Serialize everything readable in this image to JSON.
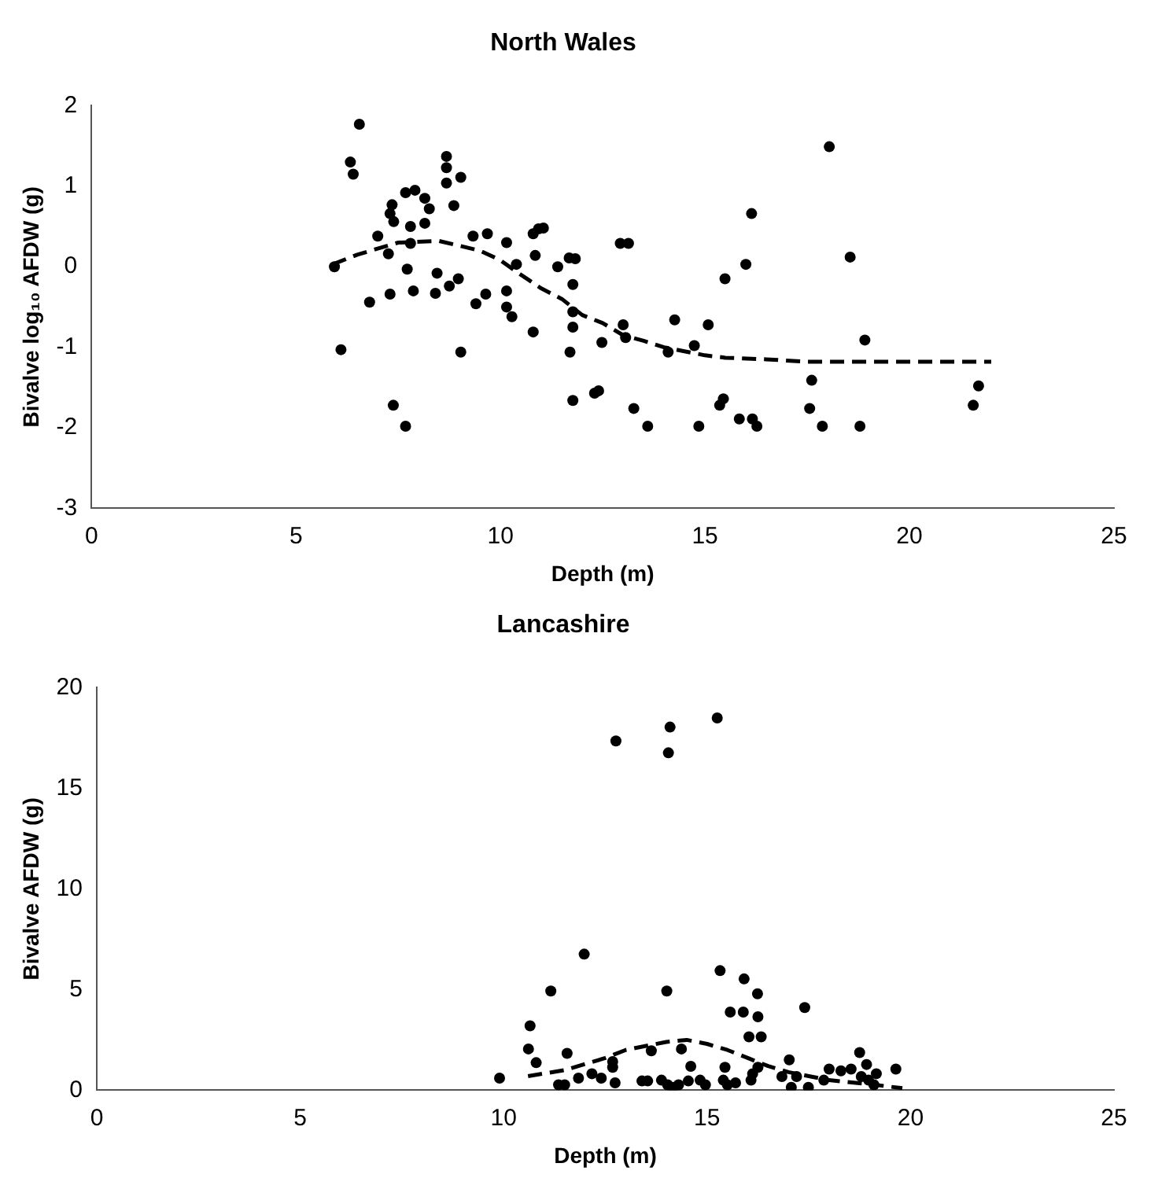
{
  "chart_data": [
    {
      "type": "scatter",
      "title": "North Wales",
      "xlabel": "Depth (m)",
      "ylabel": "Bivalve log₁₀ AFDW (g)",
      "xlim": [
        0,
        25
      ],
      "xticks": [
        0,
        5,
        10,
        15,
        20,
        25
      ],
      "ylim": [
        -3,
        2
      ],
      "yticks": [
        -3,
        -2,
        -1,
        0,
        1,
        2
      ],
      "grid": false,
      "legend": false,
      "series": [
        {
          "type": "scatter",
          "color": "#000000",
          "marker": "circle",
          "x": [
            5.94,
            6.1,
            6.33,
            6.4,
            6.55,
            6.8,
            7.0,
            7.26,
            7.3,
            7.35,
            7.39,
            7.3,
            7.38,
            7.68,
            7.91,
            7.72,
            7.8,
            7.8,
            7.68,
            7.87,
            8.15,
            8.26,
            8.15,
            8.41,
            8.45,
            8.68,
            8.68,
            8.68,
            8.75,
            8.86,
            8.97,
            9.03,
            9.03,
            9.33,
            9.4,
            9.64,
            9.68,
            10.15,
            10.15,
            10.15,
            10.28,
            10.39,
            10.8,
            10.93,
            11.05,
            10.85,
            10.8,
            11.4,
            11.68,
            11.83,
            11.77,
            11.77,
            11.77,
            11.7,
            11.77,
            12.3,
            12.4,
            12.48,
            12.93,
            13.13,
            13.0,
            13.06,
            13.26,
            13.6,
            14.26,
            14.1,
            14.74,
            14.85,
            15.08,
            15.36,
            15.45,
            15.49,
            15.84,
            16.0,
            16.14,
            16.16,
            16.27,
            17.56,
            17.61,
            17.87,
            18.04,
            18.55,
            18.79,
            18.91,
            21.56,
            21.69
          ],
          "values": [
            0.0,
            -1.03,
            1.3,
            1.15,
            1.77,
            -0.44,
            0.38,
            0.16,
            0.66,
            0.77,
            0.56,
            -0.34,
            -1.72,
            0.92,
            0.95,
            -0.03,
            0.5,
            0.29,
            -1.98,
            -0.3,
            0.85,
            0.72,
            0.54,
            -0.33,
            -0.08,
            1.37,
            1.23,
            1.04,
            -0.24,
            0.76,
            -0.15,
            1.11,
            -1.06,
            0.38,
            -0.46,
            -0.34,
            0.41,
            0.3,
            -0.3,
            -0.5,
            -0.62,
            0.03,
            0.41,
            0.47,
            0.48,
            0.14,
            -0.81,
            0.0,
            0.11,
            0.1,
            -0.22,
            -0.56,
            -0.75,
            -1.06,
            -1.66,
            -1.57,
            -1.54,
            -0.94,
            0.29,
            0.29,
            -0.72,
            -0.88,
            -1.76,
            -1.98,
            -0.66,
            -1.06,
            -0.98,
            -1.98,
            -0.72,
            -1.72,
            -1.64,
            -0.15,
            -1.89,
            0.03,
            0.66,
            -1.89,
            -1.98,
            -1.76,
            -1.41,
            -1.98,
            1.49,
            0.12,
            -1.98,
            -0.91,
            -1.72,
            -1.48
          ]
        },
        {
          "type": "line",
          "color": "#000000",
          "marker": "none",
          "line_style": "dashed",
          "x": [
            5.9,
            6.5,
            7.5,
            8.5,
            9.5,
            10,
            10.5,
            11,
            11.5,
            12,
            12.5,
            13,
            13.5,
            14,
            14.5,
            15,
            15.5,
            16.5,
            17.5,
            19.3,
            21.4,
            22
          ],
          "values": [
            0.03,
            0.15,
            0.3,
            0.32,
            0.2,
            0.08,
            -0.1,
            -0.27,
            -0.4,
            -0.6,
            -0.7,
            -0.85,
            -0.92,
            -1.0,
            -1.05,
            -1.1,
            -1.13,
            -1.15,
            -1.18,
            -1.18,
            -1.18,
            -1.18
          ]
        }
      ]
    },
    {
      "type": "scatter",
      "title": "Lancashire",
      "xlabel": "Depth (m)",
      "ylabel": "Bivalve AFDW (g)",
      "xlim": [
        0,
        25
      ],
      "xticks": [
        0,
        5,
        10,
        15,
        20,
        25
      ],
      "ylim": [
        0,
        20
      ],
      "yticks": [
        0,
        5,
        10,
        15,
        20
      ],
      "grid": false,
      "legend": false,
      "series": [
        {
          "type": "scatter",
          "color": "#000000",
          "marker": "circle",
          "x": [
            9.9,
            10.65,
            10.61,
            10.8,
            11.16,
            11.35,
            11.5,
            11.56,
            11.84,
            11.98,
            12.17,
            12.4,
            12.68,
            12.68,
            12.74,
            12.76,
            13.4,
            13.54,
            13.63,
            14.01,
            14.05,
            14.09,
            13.88,
            14.03,
            14.16,
            14.3,
            14.37,
            14.54,
            14.6,
            14.83,
            14.96,
            15.25,
            15.32,
            15.4,
            15.5,
            15.44,
            15.57,
            15.7,
            15.89,
            15.91,
            16.03,
            16.08,
            16.12,
            16.24,
            16.25,
            16.33,
            16.25,
            16.84,
            17.02,
            17.07,
            17.2,
            17.4,
            17.49,
            17.87,
            18.0,
            18.29,
            18.54,
            18.75,
            18.92,
            18.79,
            18.97,
            19.16,
            19.64,
            19.1
          ],
          "values": [
            0.6,
            3.2,
            2.05,
            1.37,
            4.93,
            0.27,
            0.27,
            1.83,
            0.6,
            6.76,
            0.82,
            0.6,
            1.42,
            1.14,
            0.37,
            17.35,
            0.46,
            0.46,
            1.96,
            4.93,
            16.76,
            18.04,
            0.5,
            0.27,
            0.14,
            0.27,
            2.05,
            0.46,
            1.19,
            0.5,
            0.27,
            18.49,
            5.94,
            0.5,
            0.27,
            1.14,
            3.88,
            0.37,
            3.88,
            5.53,
            2.65,
            0.5,
            0.82,
            4.79,
            3.65,
            2.65,
            1.14,
            0.68,
            1.51,
            0.14,
            0.68,
            4.11,
            0.14,
            0.5,
            1.05,
            0.96,
            1.05,
            1.87,
            1.28,
            0.68,
            0.5,
            0.82,
            1.05,
            0.27
          ]
        },
        {
          "type": "line",
          "color": "#000000",
          "marker": "none",
          "line_style": "dashed",
          "x": [
            10.6,
            11.5,
            12.5,
            13,
            14,
            14.5,
            15,
            15.5,
            16,
            16.5,
            17,
            17.5,
            18,
            19,
            19.8
          ],
          "values": [
            0.7,
            1.0,
            1.6,
            2.0,
            2.4,
            2.5,
            2.3,
            2.0,
            1.6,
            1.2,
            0.9,
            0.7,
            0.5,
            0.3,
            0.1
          ]
        }
      ]
    }
  ]
}
